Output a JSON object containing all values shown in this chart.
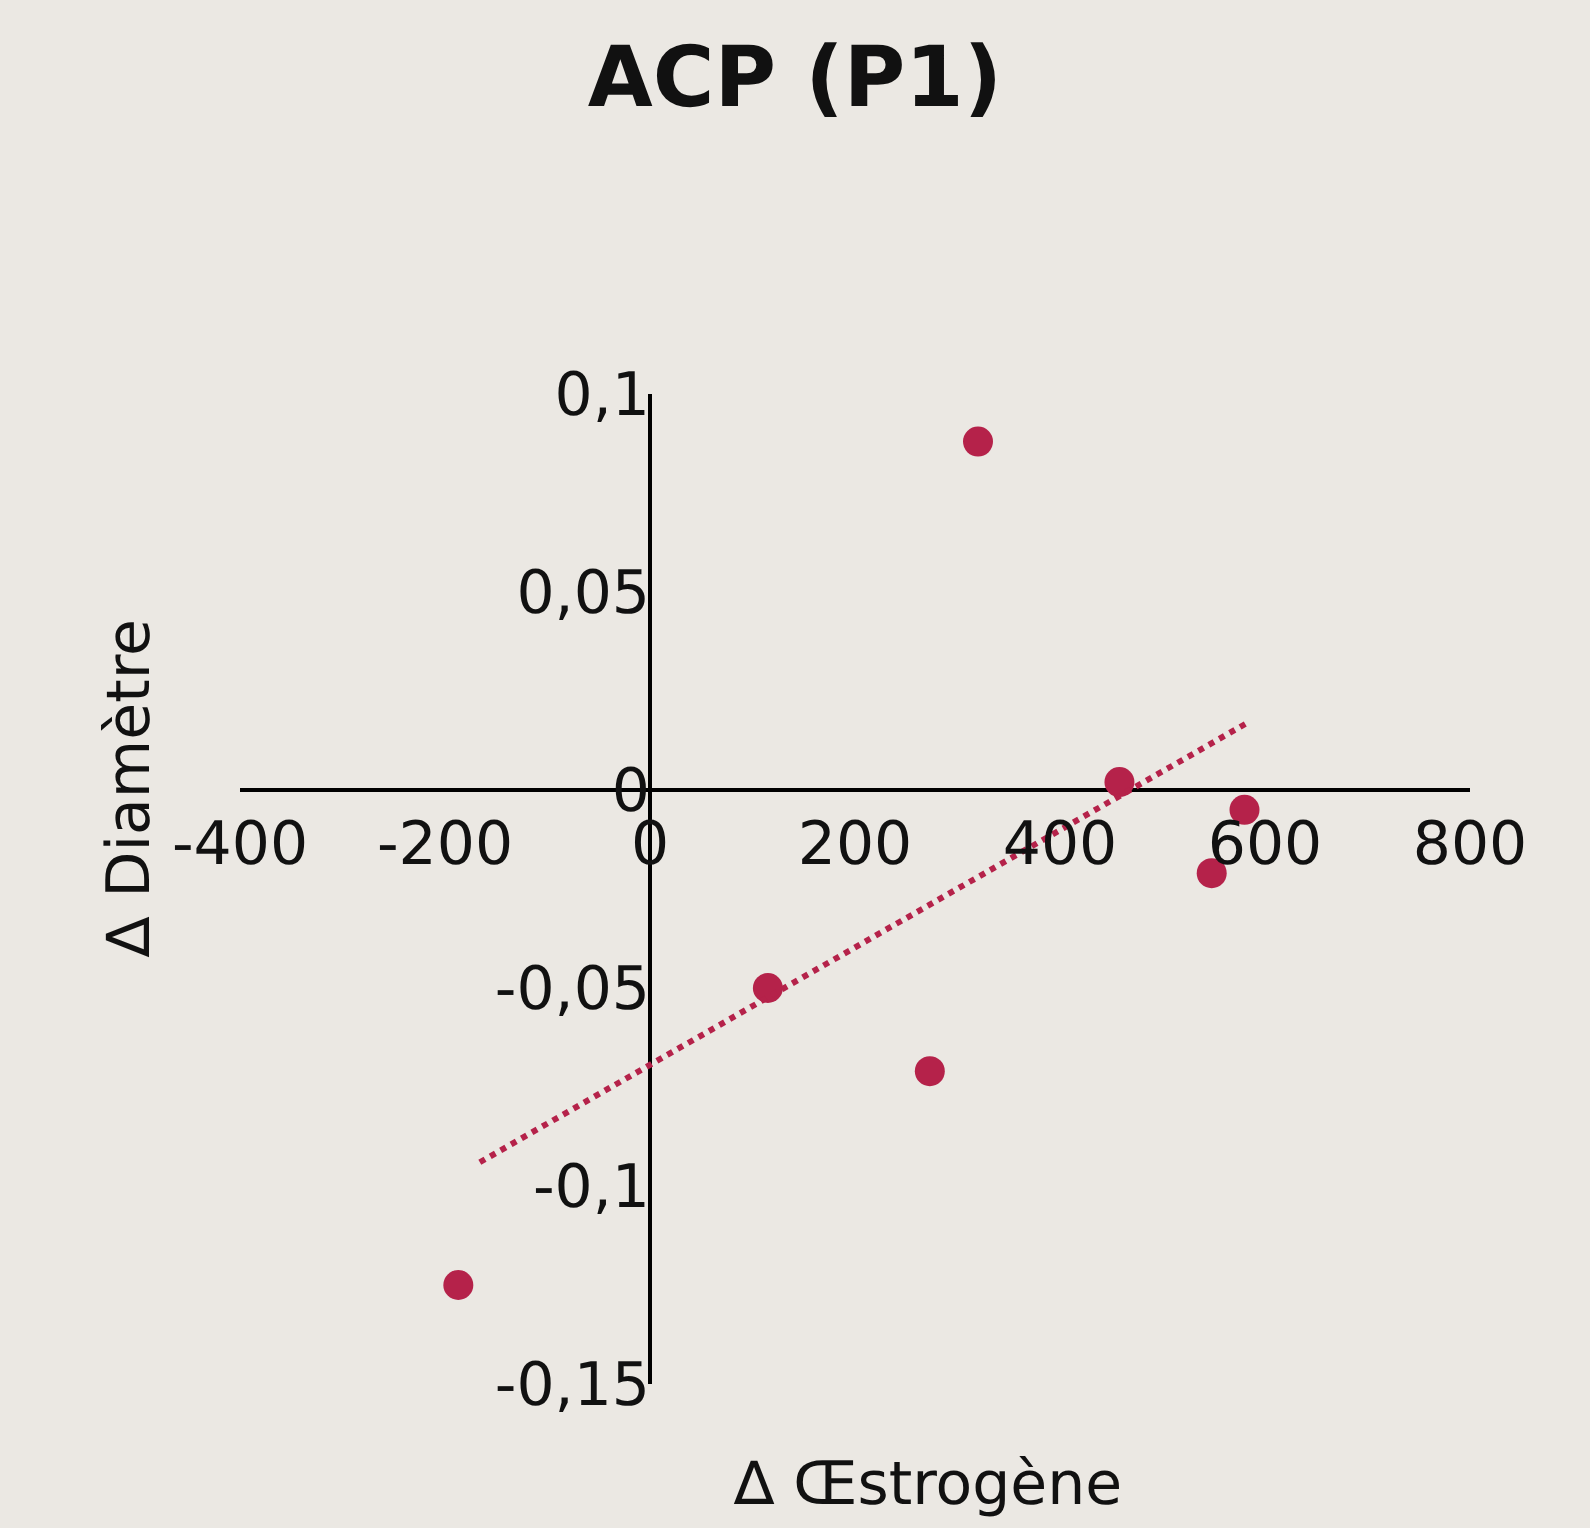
{
  "chart_data": {
    "type": "scatter",
    "title": "ACP (P1)",
    "xlabel": "∆ Œstrogène",
    "ylabel": "∆ Diamètre",
    "xlim": [
      -400,
      800
    ],
    "xticks": [
      -400,
      -200,
      0,
      200,
      400,
      600,
      800
    ],
    "ylim": [
      -0.15,
      0.1
    ],
    "yticks": [
      {
        "value": -0.15,
        "label": "-0,15"
      },
      {
        "value": -0.1,
        "label": "-0,1"
      },
      {
        "value": -0.05,
        "label": "-0,05"
      },
      {
        "value": 0,
        "label": "0"
      },
      {
        "value": 0.05,
        "label": "0,05"
      },
      {
        "value": 0.1,
        "label": "0,1"
      }
    ],
    "grid": false,
    "legend": false,
    "marker": "circle",
    "series": [
      {
        "color": "#b5224a",
        "x": [
          320,
          458,
          580,
          548,
          115,
          273,
          -187
        ],
        "values": [
          0.088,
          0.002,
          -0.005,
          -0.021,
          -0.05,
          -0.071,
          -0.125
        ]
      },
      {
        "type": "line",
        "color": "#b5224a",
        "line_style": "dotted",
        "marker": "none",
        "x": [
          -166,
          583
        ],
        "values": [
          -0.094,
          0.017
        ]
      }
    ]
  }
}
